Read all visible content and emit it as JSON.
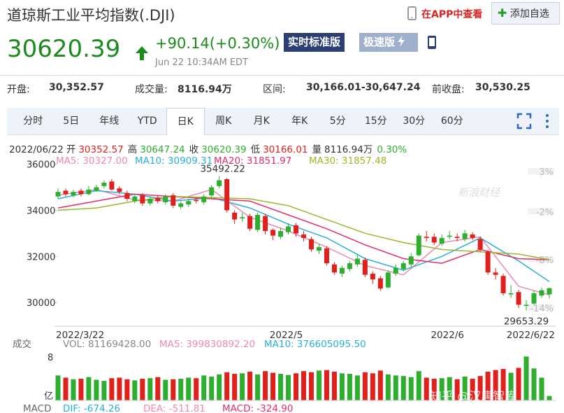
{
  "header": {
    "title": "道琼斯工业平均指数(.DJI)",
    "price": "30620.39",
    "change": "+90.14(+0.30%)",
    "time": "Jun 22 10:34AM EDT",
    "btn_realtime": "实时标准版",
    "btn_fast": "极速版",
    "app_link": "在APP中查看",
    "add_watch": "添加自选"
  },
  "stats": [
    {
      "label": "开盘:",
      "value": "30,352.57"
    },
    {
      "label": "成交量:",
      "value": "8116.94万"
    },
    {
      "label": "区间:",
      "value": "30,166.01-30,647.24"
    },
    {
      "label": "前收盘:",
      "value": "30,530.25"
    }
  ],
  "tabs": [
    "分时",
    "5日",
    "年线",
    "YTD",
    "日K",
    "周K",
    "月K",
    "年K",
    "5分",
    "15分",
    "30分",
    "60分"
  ],
  "active_tab": 4,
  "info_line": [
    {
      "label": "2022/06/22",
      "value": ""
    },
    {
      "label": "开",
      "value": "30352.57"
    },
    {
      "label": "高",
      "value": "30647.24"
    },
    {
      "label": "收",
      "value": "30620.39"
    },
    {
      "label": "低",
      "value": "30166.01"
    },
    {
      "label": "量",
      "value": "8116.94万"
    },
    {
      "label": "0.30%",
      "value": ""
    }
  ],
  "chart_data": {
    "type": "candlestick",
    "up_color": "#2eae2e",
    "down_color": "#e0201a",
    "open": [
      34600,
      34850,
      34650,
      34850,
      34700,
      34850,
      35050,
      35250,
      34950,
      34750,
      34400,
      34650,
      34300,
      34550,
      34350,
      34650,
      34150,
      34250,
      34450,
      34350,
      34650,
      35050,
      35350,
      33900,
      33650,
      33750,
      33150,
      33750,
      33150,
      32850,
      33050,
      33350,
      32950,
      32750,
      32250,
      32350,
      31650,
      31250,
      31450,
      31650,
      31850,
      31250,
      31050,
      30650,
      31250,
      31450,
      31650,
      32050,
      32850,
      32850,
      32550,
      32850,
      32850,
      32750,
      32950,
      32750,
      32200,
      31300,
      31150,
      30350,
      30450,
      29850,
      29950,
      30300,
      30352.57
    ],
    "high": [
      34950,
      34950,
      34900,
      34950,
      35050,
      35100,
      35300,
      35350,
      35050,
      34850,
      34700,
      34750,
      34600,
      34650,
      34700,
      34750,
      34400,
      34500,
      34550,
      34700,
      35100,
      35492.22,
      35400,
      34000,
      33900,
      33850,
      33900,
      33850,
      33200,
      33250,
      33450,
      33450,
      33100,
      32850,
      32550,
      32450,
      31750,
      31600,
      31800,
      32100,
      31950,
      31350,
      31150,
      31400,
      31650,
      31800,
      32150,
      33000,
      33100,
      33000,
      32950,
      33100,
      33000,
      33150,
      33050,
      32850,
      32250,
      31500,
      31250,
      30750,
      30550,
      30100,
      30500,
      30650,
      30647.24
    ],
    "low": [
      34500,
      34600,
      34550,
      34600,
      34650,
      34800,
      34950,
      34850,
      34700,
      34400,
      34300,
      34200,
      34200,
      34300,
      34250,
      34100,
      34050,
      34150,
      34300,
      34250,
      34550,
      34950,
      33900,
      33400,
      33500,
      33100,
      33050,
      32950,
      32700,
      32750,
      32950,
      32850,
      32650,
      32200,
      32100,
      31600,
      31200,
      31100,
      31350,
      31550,
      31100,
      30800,
      30500,
      30600,
      31150,
      31350,
      31550,
      32000,
      32650,
      32500,
      32450,
      32750,
      32650,
      32650,
      32700,
      32200,
      31200,
      31000,
      30300,
      30200,
      29750,
      29653.29,
      29900,
      30200,
      30166.01
    ],
    "close": [
      34800,
      34700,
      34800,
      34700,
      34900,
      35000,
      35200,
      34900,
      34800,
      34500,
      34600,
      34300,
      34500,
      34400,
      34600,
      34200,
      34300,
      34400,
      34400,
      34600,
      35000,
      35300,
      34000,
      33600,
      33700,
      33200,
      33800,
      33100,
      32900,
      33100,
      33300,
      33000,
      32800,
      32300,
      32400,
      31700,
      31300,
      31500,
      31700,
      31900,
      31200,
      31000,
      30600,
      31300,
      31500,
      31700,
      32000,
      32900,
      32800,
      32600,
      32800,
      32900,
      32800,
      33000,
      32800,
      32300,
      31300,
      31200,
      30400,
      30400,
      29900,
      29900,
      30400,
      30530.25,
      30620.39
    ],
    "ylim": [
      29000,
      36200
    ],
    "yticks": [
      30000,
      32000,
      34000,
      36000
    ],
    "y2lim": [
      -16.2,
      4.5
    ],
    "y2ticks": [
      {
        "value": 3,
        "label": "3%"
      },
      {
        "value": -2,
        "label": "-2%"
      },
      {
        "value": -8,
        "label": "-8%"
      },
      {
        "value": -14,
        "label": "-14%"
      }
    ],
    "x_labels": [
      {
        "index": 0,
        "label": "2022/3/22"
      },
      {
        "index": 29,
        "label": "2022/5"
      },
      {
        "index": 50,
        "label": "2022/6"
      },
      {
        "index": 64,
        "label": "2022/6/22"
      }
    ],
    "annotations": [
      {
        "index": 21,
        "value": 35492.22,
        "label": "35492.22"
      },
      {
        "index": 61,
        "value": 29653.29,
        "label": "29653.29"
      }
    ],
    "ma_series": [
      {
        "name": "MA5: 30327.00",
        "color": "#ee8ab0",
        "x": [
          0,
          5,
          10,
          15,
          20,
          25,
          30,
          35,
          40,
          45,
          50,
          55,
          60,
          64
        ],
        "values": [
          34650,
          34900,
          34450,
          34400,
          34900,
          33700,
          33100,
          32400,
          31600,
          31200,
          32600,
          32850,
          30700,
          30327
        ]
      },
      {
        "name": "MA10: 30909.31",
        "color": "#2ab0d8",
        "x": [
          0,
          5,
          10,
          15,
          20,
          25,
          30,
          35,
          40,
          45,
          50,
          55,
          60,
          64
        ],
        "values": [
          34500,
          34850,
          34700,
          34400,
          34550,
          34100,
          33400,
          32800,
          31900,
          31400,
          32000,
          32800,
          31800,
          30909.31
        ]
      },
      {
        "name": "MA20: 31851.97",
        "color": "#e0306a",
        "x": [
          0,
          5,
          10,
          15,
          20,
          25,
          30,
          35,
          40,
          45,
          50,
          55,
          60,
          64
        ],
        "values": [
          34100,
          34400,
          34700,
          34600,
          34500,
          34400,
          33800,
          33200,
          32500,
          31900,
          31700,
          32300,
          31900,
          31851.97
        ]
      },
      {
        "name": "MA30: 31857.48",
        "color": "#9ab82a",
        "x": [
          0,
          5,
          10,
          15,
          20,
          25,
          30,
          35,
          40,
          45,
          50,
          55,
          60,
          64
        ],
        "values": [
          34000,
          34100,
          34400,
          34600,
          34550,
          34500,
          34200,
          33600,
          33000,
          32600,
          32300,
          32200,
          32100,
          31857.48
        ]
      }
    ],
    "volume": {
      "values": [
        4.6,
        4.2,
        3.9,
        4.0,
        4.3,
        3.8,
        3.6,
        4.1,
        4.2,
        3.9,
        3.7,
        4.0,
        4.1,
        4.3,
        3.8,
        3.9,
        4.0,
        4.2,
        4.1,
        4.6,
        4.4,
        4.8,
        5.2,
        4.9,
        5.0,
        5.3,
        4.8,
        5.4,
        5.1,
        4.9,
        4.7,
        5.0,
        5.4,
        5.2,
        5.5,
        5.6,
        5.3,
        5.0,
        4.9,
        4.6,
        5.2,
        5.0,
        5.5,
        4.8,
        4.6,
        4.5,
        4.3,
        5.4,
        4.2,
        4.0,
        4.1,
        4.3,
        3.9,
        4.4,
        4.0,
        4.5,
        5.3,
        5.6,
        5.8,
        5.1,
        6.0,
        8.1,
        5.9,
        4.2,
        0.81
      ],
      "ylim": [
        0,
        9.3
      ],
      "yticks": [
        8
      ],
      "unit": "亿",
      "legend": [
        "成交",
        "VOL: 81169428.00",
        "MA5: 399830892.20",
        "MA10: 376605095.50"
      ],
      "legend_colors": [
        "#666",
        "#888",
        "#ee8ab0",
        "#2ab0d8"
      ]
    },
    "macd_legend": [
      "MACD",
      "DIF: -674.26",
      "DEA: -511.81",
      "MACD: -324.90"
    ],
    "macd_colors": [
      "#666",
      "#2ab0d8",
      "#ee8ab0",
      "#e0306a"
    ]
  },
  "watermarks": {
    "sina": "新浪财经",
    "zhihu": "知乎 @汉唐智库"
  }
}
